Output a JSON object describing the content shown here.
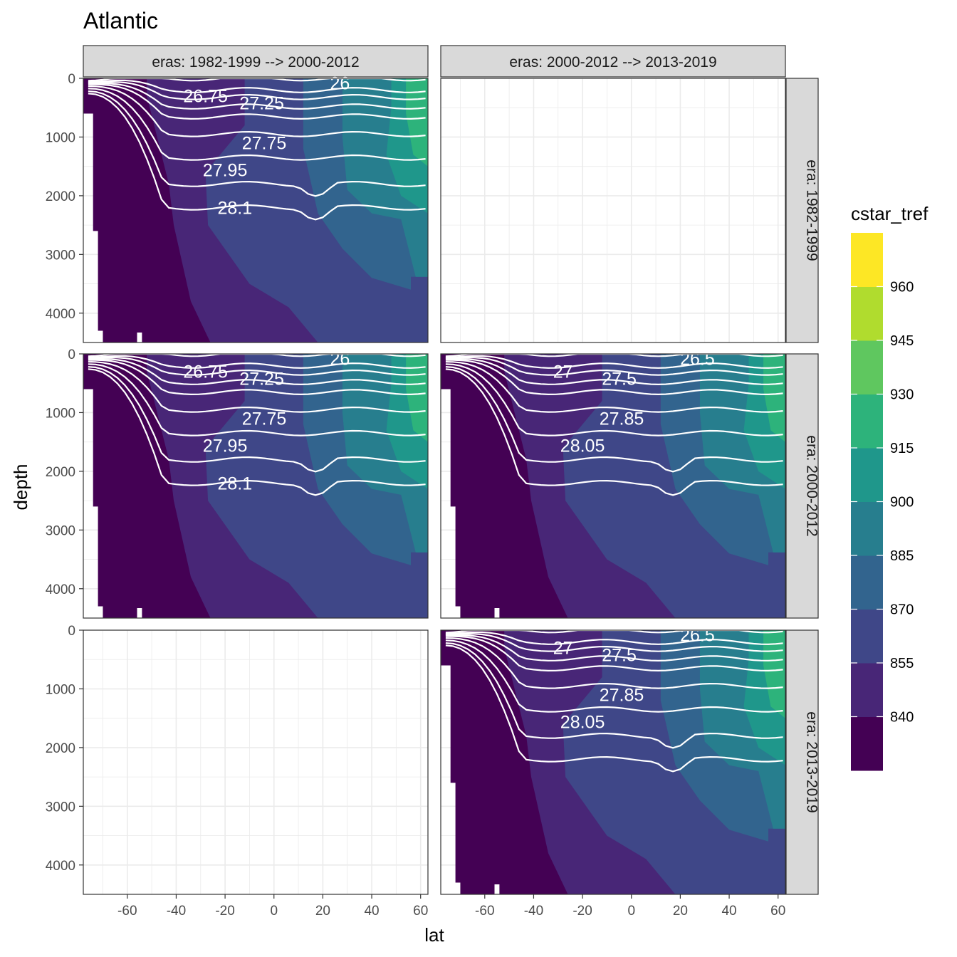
{
  "chart_data": {
    "type": "heatmap",
    "title": "Atlantic",
    "xlabel": "lat",
    "ylabel": "depth",
    "x_ticks": [
      -60,
      -40,
      -20,
      0,
      20,
      40,
      60
    ],
    "y_ticks": [
      0,
      1000,
      2000,
      3000,
      4000
    ],
    "xlim": [
      -78,
      63
    ],
    "ylim": [
      0,
      4500
    ],
    "grid": true,
    "facets": {
      "column_label": "eras",
      "columns": [
        "eras: 1982-1999 --> 2000-2012",
        "eras: 2000-2012 --> 2013-2019"
      ],
      "row_label": "era",
      "rows": [
        "era: 1982-1999",
        "era: 2000-2012",
        "era: 2013-2019"
      ],
      "panels_with_data": [
        {
          "row": 0,
          "col": 0,
          "contour_labels": [
            "26",
            "26.75",
            "27.25",
            "27.75",
            "27.95",
            "28.1"
          ]
        },
        {
          "row": 1,
          "col": 0,
          "contour_labels": [
            "26",
            "26.75",
            "27.25",
            "27.75",
            "27.95",
            "28.1"
          ]
        },
        {
          "row": 1,
          "col": 1,
          "contour_labels": [
            "26.5",
            "27",
            "27.5",
            "27.85",
            "28.05"
          ]
        },
        {
          "row": 2,
          "col": 1,
          "contour_labels": [
            "26.5",
            "27",
            "27.5",
            "27.85",
            "28.05"
          ]
        }
      ]
    },
    "legend": {
      "title": "cstar_tref",
      "placement": "right",
      "labels": [
        840,
        855,
        870,
        885,
        900,
        915,
        930,
        945,
        960
      ],
      "colors": [
        "#440154",
        "#482677",
        "#3f4788",
        "#32648e",
        "#277e8e",
        "#1f978b",
        "#2db37b",
        "#5fc75f",
        "#b0dc2e",
        "#fde725"
      ]
    }
  }
}
